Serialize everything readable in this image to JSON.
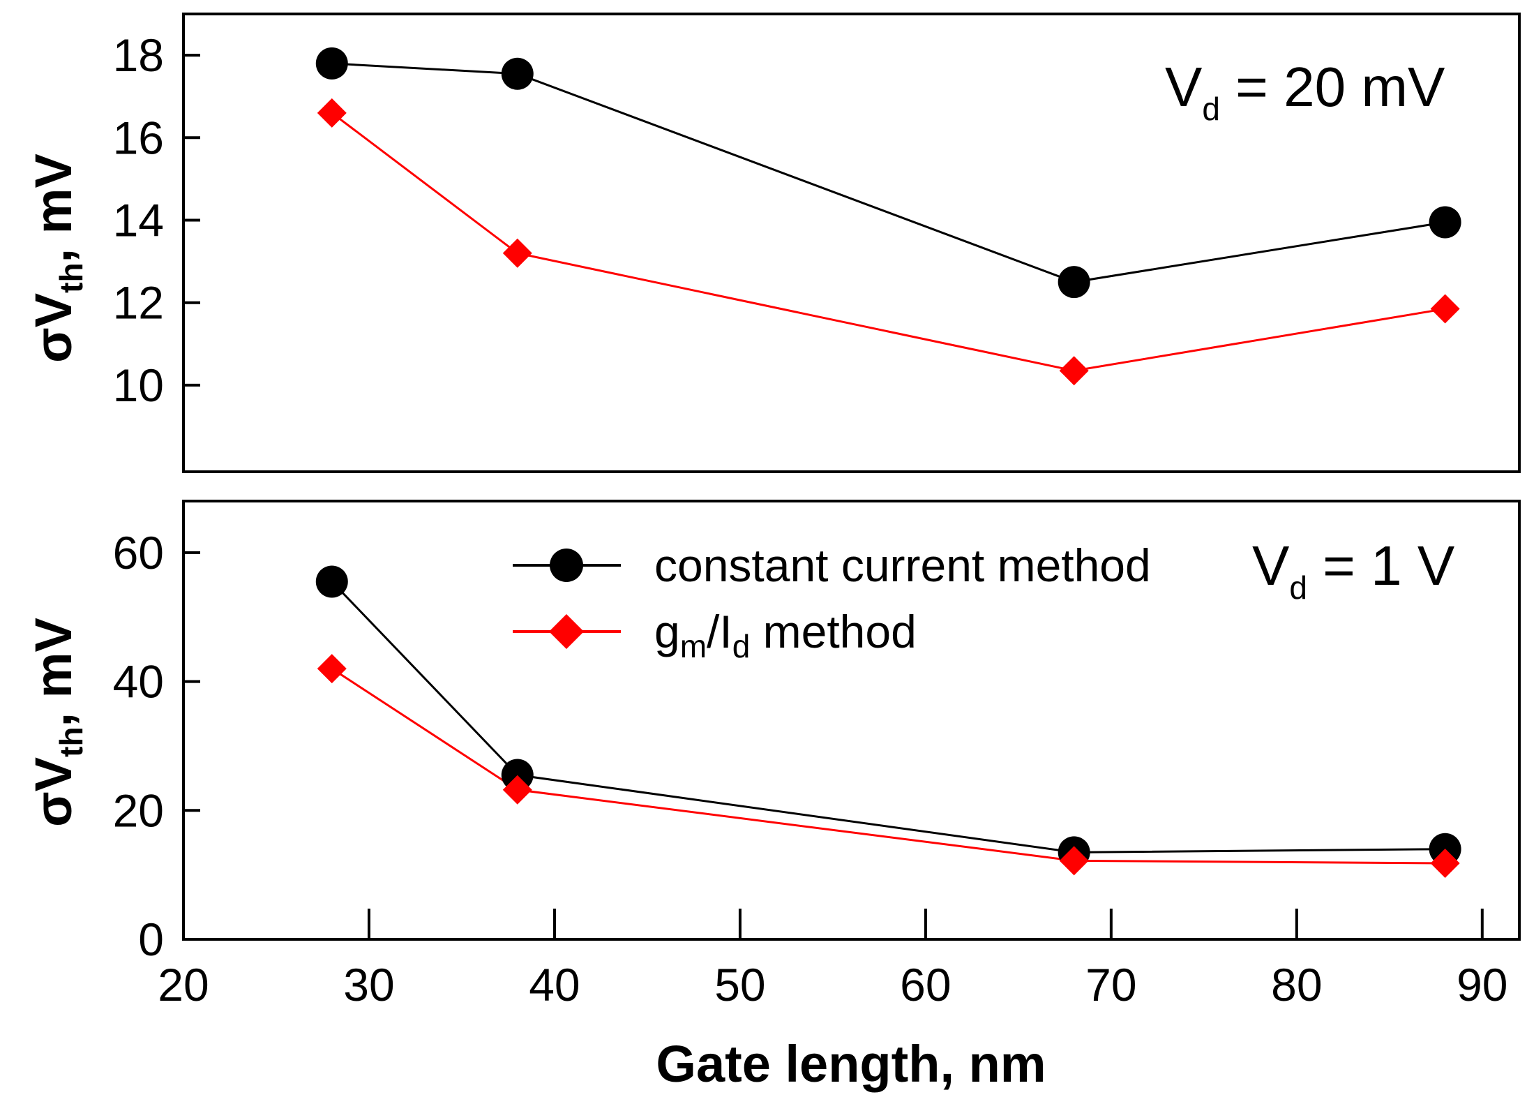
{
  "chart_data": [
    {
      "type": "line",
      "panel": "top",
      "annotation": {
        "main": "V",
        "sub": "d",
        "rest": " = 20 mV"
      },
      "ylabel": {
        "sigma": "σ",
        "v": "V",
        "sub": "th",
        "rest": ", mV"
      },
      "xlim": [
        20,
        92
      ],
      "ylim": [
        7.9,
        19
      ],
      "yticks": [
        10,
        12,
        14,
        16,
        18
      ],
      "x": [
        28,
        38,
        68,
        88
      ],
      "series": [
        {
          "name": "constant current method",
          "color": "#000000",
          "marker": "circle",
          "values": [
            17.8,
            17.55,
            12.5,
            13.95
          ]
        },
        {
          "name": "gm/Id method",
          "color": "#ff0000",
          "marker": "diamond",
          "values": [
            16.6,
            13.2,
            10.35,
            11.85
          ]
        }
      ]
    },
    {
      "type": "line",
      "panel": "bottom",
      "annotation": {
        "main": "V",
        "sub": "d",
        "rest": " = 1 V"
      },
      "ylabel": {
        "sigma": "σ",
        "v": "V",
        "sub": "th",
        "rest": ", mV"
      },
      "xlabel": "Gate length, nm",
      "xlim": [
        20,
        92
      ],
      "ylim": [
        0,
        68
      ],
      "xticks": [
        20,
        30,
        40,
        50,
        60,
        70,
        80,
        90
      ],
      "yticks": [
        0,
        20,
        40,
        60
      ],
      "x": [
        28,
        38,
        68,
        88
      ],
      "series": [
        {
          "name": "constant current method",
          "color": "#000000",
          "marker": "circle",
          "values": [
            55.5,
            25.5,
            13.5,
            14
          ]
        },
        {
          "name": "gm/Id method",
          "color": "#ff0000",
          "marker": "diamond",
          "values": [
            42,
            23.2,
            12.2,
            11.8
          ]
        }
      ],
      "legend": {
        "placement": "top-center",
        "entries": [
          {
            "text": "constant current method"
          },
          {
            "g": "g",
            "m": "m",
            "slash": "/I",
            "d": "d",
            "rest": " method"
          }
        ]
      }
    }
  ]
}
